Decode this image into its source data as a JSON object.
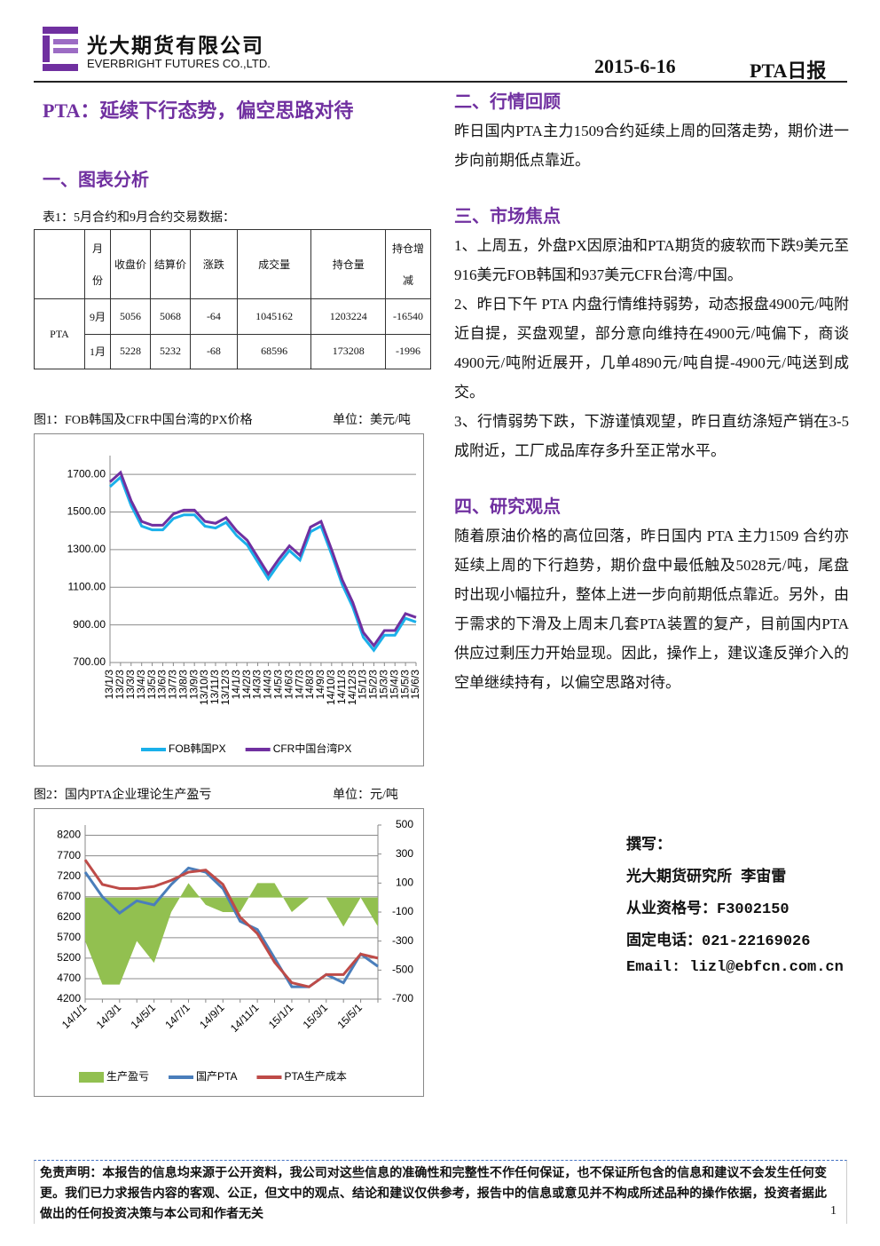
{
  "header": {
    "company_cn": "光大期货有限公司",
    "company_en": "EVERBRIGHT FUTURES CO.,LTD.",
    "date": "2015-6-16",
    "report_name": "PTA日报"
  },
  "headline": "PTA：延续下行态势，偏空思路对待",
  "section_chart": {
    "title": "一、图表分析",
    "table_caption": "表1：5月合约和9月合约交易数据："
  },
  "table": {
    "headers": [
      "月份",
      "收盘价",
      "结算价",
      "涨跌",
      "成交量",
      "持仓量",
      "持仓增减"
    ],
    "product": "PTA",
    "rows": [
      [
        "9月",
        5056,
        5068,
        -64,
        1045162,
        1203224,
        -16540
      ],
      [
        "1月",
        5228,
        5232,
        -68,
        68596,
        173208,
        -1996
      ]
    ]
  },
  "chart_data": [
    {
      "type": "line",
      "title": "图1：FOB韩国及CFR中国台湾的PX价格",
      "unit": "单位：美元/吨",
      "categories": [
        "13/1/3",
        "13/2/3",
        "13/3/3",
        "13/4/3",
        "13/5/3",
        "13/6/3",
        "13/7/3",
        "13/8/3",
        "13/9/3",
        "13/10/3",
        "13/11/3",
        "13/12/3",
        "14/1/3",
        "14/2/3",
        "14/3/3",
        "14/4/3",
        "14/5/3",
        "14/6/3",
        "14/7/3",
        "14/8/3",
        "14/9/3",
        "14/10/3",
        "14/11/3",
        "14/12/3",
        "15/1/3",
        "15/2/3",
        "15/3/3",
        "15/4/3",
        "15/5/3",
        "15/6/3"
      ],
      "series": [
        {
          "name": "FOB韩国PX",
          "color": "#1ab0ea",
          "values": [
            1635,
            1685,
            1535,
            1425,
            1405,
            1405,
            1465,
            1485,
            1485,
            1425,
            1415,
            1445,
            1375,
            1325,
            1235,
            1145,
            1225,
            1295,
            1245,
            1395,
            1425,
            1275,
            1115,
            995,
            835,
            765,
            845,
            845,
            935,
            915
          ]
        },
        {
          "name": "CFR中国台湾PX",
          "color": "#7030a0",
          "values": [
            1660,
            1710,
            1560,
            1450,
            1430,
            1430,
            1490,
            1510,
            1510,
            1450,
            1440,
            1470,
            1400,
            1350,
            1260,
            1170,
            1250,
            1320,
            1270,
            1420,
            1450,
            1300,
            1140,
            1020,
            860,
            790,
            870,
            870,
            960,
            940
          ]
        }
      ],
      "ylim": [
        700,
        1800
      ],
      "yticks": [
        {
          "value": 700,
          "label": "700.00"
        },
        {
          "value": 900,
          "label": "900.00"
        },
        {
          "value": 1100,
          "label": "1100.00"
        },
        {
          "value": 1300,
          "label": "1300.00"
        },
        {
          "value": 1500,
          "label": "1500.00"
        },
        {
          "value": 1700,
          "label": "1700.00"
        }
      ],
      "grid": true,
      "legend": "bottom"
    },
    {
      "type": "line",
      "title": "图2：国内PTA企业理论生产盈亏",
      "unit": "单位：元/吨",
      "categories": [
        "14/1/1",
        null,
        "14/3/1",
        null,
        "14/5/1",
        null,
        "14/7/1",
        null,
        "14/9/1",
        null,
        "14/11/1",
        null,
        "15/1/1",
        null,
        "15/3/1",
        null,
        "15/5/1",
        null
      ],
      "series": [
        {
          "name": "生产盈亏",
          "color": "#92c050",
          "type": "area",
          "axis": "y2",
          "values": [
            -300,
            -600,
            -600,
            -300,
            -450,
            -100,
            100,
            -50,
            -100,
            -100,
            100,
            100,
            -100,
            0,
            0,
            -200,
            0,
            -200
          ]
        },
        {
          "name": "国产PTA",
          "color": "#4a7ebb",
          "values": [
            7300,
            6700,
            6300,
            6600,
            6500,
            7000,
            7400,
            7300,
            6900,
            6100,
            5900,
            5200,
            4500,
            4500,
            4800,
            4600,
            5300,
            5000
          ]
        },
        {
          "name": "PTA生产成本",
          "color": "#be4b48",
          "values": [
            7600,
            7000,
            6900,
            6900,
            6950,
            7100,
            7300,
            7350,
            7000,
            6200,
            5800,
            5100,
            4600,
            4500,
            4800,
            4800,
            5300,
            5200
          ]
        }
      ],
      "ylim": [
        4200,
        8450
      ],
      "yticks": [
        4200,
        4700,
        5200,
        5700,
        6200,
        6700,
        7200,
        7700,
        8200
      ],
      "y2lim": [
        -700,
        500
      ],
      "y2ticks": [
        -700,
        -500,
        -300,
        -100,
        100,
        300,
        500
      ],
      "grid": true,
      "legend": "bottom"
    }
  ],
  "sections": [
    {
      "title": "二、行情回顾",
      "paragraphs": [
        "昨日国内PTA主力1509合约延续上周的回落走势，期价进一步向前期低点靠近。"
      ]
    },
    {
      "title": "三、市场焦点",
      "paragraphs": [
        "1、上周五，外盘PX因原油和PTA期货的疲软而下跌9美元至916美元FOB韩国和937美元CFR台湾/中国。",
        "2、昨日下午 PTA 内盘行情维持弱势，动态报盘4900元/吨附近自提，买盘观望，部分意向维持在4900元/吨偏下，商谈 4900元/吨附近展开，几单4890元/吨自提-4900元/吨送到成交。",
        "3、行情弱势下跌，下游谨慎观望，昨日直纺涤短产销在3-5成附近，工厂成品库存多升至正常水平。"
      ]
    },
    {
      "title": "四、研究观点",
      "paragraphs": [
        "随着原油价格的高位回落，昨日国内 PTA 主力1509 合约亦延续上周的下行趋势，期价盘中最低触及5028元/吨，尾盘时出现小幅拉升，整体上进一步向前期低点靠近。另外，由于需求的下滑及上周末几套PTA装置的复产，目前国内PTA供应过剩压力开始显现。因此，操作上，建议逢反弹介入的空单继续持有，以偏空思路对待。"
      ]
    }
  ],
  "author": {
    "label": "撰写：",
    "name": "光大期货研究所 李宙雷",
    "license": "从业资格号：F3002150",
    "phone": "固定电话：021-22169026",
    "email": "Email: lizl@ebfcn.com.cn"
  },
  "footer": {
    "disclaimer": "免责声明：本报告的信息均来源于公开资料，我公司对这些信息的准确性和完整性不作任何保证，也不保证所包含的信息和建议不会发生任何变更。我们已力求报告内容的客观、公正，但文中的观点、结论和建议仅供参考，报告中的信息或意见并不构成所述品种的操作依据，投资者据此做出的任何投资决策与本公司和作者无关",
    "page": 1
  }
}
